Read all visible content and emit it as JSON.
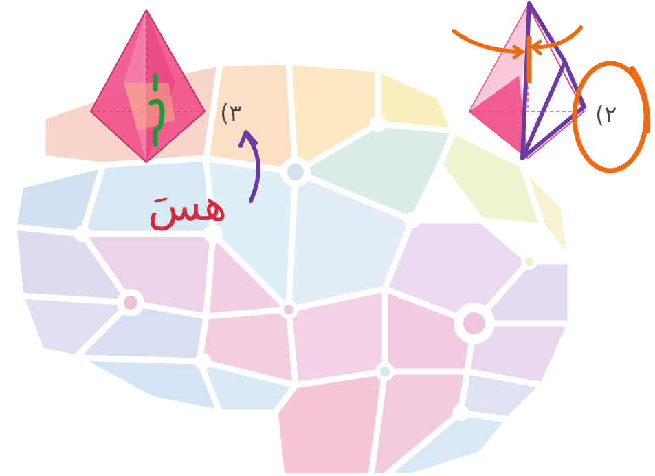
{
  "labels": {
    "figure3": "(٣",
    "figure2": "(٢"
  },
  "handwriting": {
    "green_mark": "ق",
    "red_word": "هسَ"
  },
  "colors": {
    "pyramid_pink": "#f0508a",
    "pyramid_pink_light": "#f7a6c4",
    "ink_green": "#1f9a3a",
    "ink_red": "#d6293c",
    "ink_purple": "#6a3aa8",
    "ink_orange": "#f06a12",
    "label_gray": "#4a4a4a"
  },
  "icons": {
    "background": "brain-network-icon",
    "pyramid_left": "square-pyramid-icon",
    "pyramid_right": "square-pyramid-icon"
  }
}
